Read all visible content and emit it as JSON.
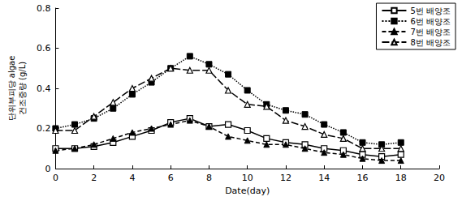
{
  "chart_data": {
    "type": "line",
    "x_label": "Date(day)",
    "y_label": "단위부피당 algae 건조중량 (g/L)",
    "x": [
      0,
      1,
      2,
      3,
      4,
      5,
      6,
      7,
      8,
      9,
      10,
      11,
      12,
      13,
      14,
      15,
      16,
      17,
      18
    ],
    "series": [
      {
        "name": "5번 배양조",
        "color": "#000000",
        "marker": "square-open",
        "line_style": "solid",
        "values": [
          0.1,
          0.1,
          0.11,
          0.13,
          0.16,
          0.19,
          0.23,
          0.25,
          0.21,
          0.22,
          0.19,
          0.15,
          0.13,
          0.12,
          0.1,
          0.09,
          0.07,
          0.06,
          0.07
        ]
      },
      {
        "name": "6번 배양조",
        "color": "#000000",
        "marker": "square",
        "line_style": "dotted",
        "values": [
          0.2,
          0.22,
          0.25,
          0.3,
          0.37,
          0.43,
          0.5,
          0.56,
          0.52,
          0.47,
          0.39,
          0.32,
          0.29,
          0.27,
          0.22,
          0.18,
          0.13,
          0.12,
          0.13
        ]
      },
      {
        "name": "7번 배양조",
        "color": "#000000",
        "marker": "triangle",
        "line_style": "dashed",
        "values": [
          0.09,
          0.1,
          0.12,
          0.15,
          0.18,
          0.2,
          0.22,
          0.24,
          0.21,
          0.16,
          0.14,
          0.12,
          0.12,
          0.1,
          0.08,
          0.07,
          0.05,
          0.04,
          0.04
        ]
      },
      {
        "name": "8번 배양조",
        "color": "#000000",
        "marker": "triangle-open",
        "line_style": "longdash",
        "values": [
          0.19,
          0.19,
          0.26,
          0.33,
          0.4,
          0.45,
          0.5,
          0.49,
          0.49,
          0.39,
          0.32,
          0.31,
          0.24,
          0.21,
          0.17,
          0.15,
          0.1,
          0.1,
          0.1
        ]
      }
    ],
    "xlim": [
      0,
      20
    ],
    "xticks": [
      0,
      2,
      4,
      6,
      8,
      10,
      12,
      14,
      16,
      18,
      20
    ],
    "ylim": [
      0,
      0.8
    ],
    "yticks": [
      0,
      0.2,
      0.4,
      0.6,
      0.8
    ],
    "grid": false,
    "legend": "upper right"
  }
}
